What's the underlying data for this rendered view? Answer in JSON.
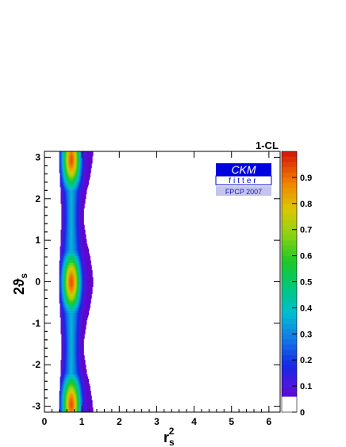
{
  "chart_data": {
    "type": "heatmap",
    "title": "",
    "xlabel": "r",
    "xlabel_sub": "s",
    "xlabel_sup": "2",
    "ylabel": "2ϑ",
    "ylabel_sub": "s",
    "xlim": [
      0,
      6.3
    ],
    "ylim": [
      -3.14159,
      3.14159
    ],
    "x_ticks": [
      0,
      1,
      2,
      3,
      4,
      5,
      6
    ],
    "x_tick_labels": [
      "0",
      "1",
      "2",
      "3",
      "4",
      "5",
      "6"
    ],
    "y_ticks": [
      -3,
      -2,
      -1,
      0,
      1,
      2,
      3
    ],
    "y_tick_labels": [
      "-3",
      "-2",
      "-1",
      "0",
      "1",
      "2",
      "3"
    ],
    "colorbar": {
      "title": "1-CL",
      "range": [
        0,
        1
      ],
      "ticks": [
        0,
        0.1,
        0.2,
        0.3,
        0.4,
        0.5,
        0.6,
        0.7,
        0.8,
        0.9
      ],
      "tick_labels": [
        "0",
        "0.1",
        "0.2",
        "0.3",
        "0.4",
        "0.5",
        "0.6",
        "0.7",
        "0.8",
        "0.9"
      ]
    },
    "region": {
      "description_values": "confidence band in r_s^2 vs 2theta_s",
      "peaks": [
        {
          "x": 0.72,
          "y": 0.0,
          "value": 0.93
        },
        {
          "x": 0.72,
          "y": 2.95,
          "value": 0.93
        },
        {
          "x": 0.72,
          "y": -2.95,
          "value": 0.93
        }
      ],
      "band_edge_x": [
        {
          "y": -3.14,
          "left": 0.45,
          "right": 1.25
        },
        {
          "y": -1.6,
          "left": 0.4,
          "right": 1.05
        },
        {
          "y": 0.0,
          "left": 0.38,
          "right": 1.3
        },
        {
          "y": 1.6,
          "left": 0.4,
          "right": 1.05
        },
        {
          "y": 3.14,
          "left": 0.45,
          "right": 1.25
        }
      ]
    }
  },
  "logo": {
    "word1": "CKM",
    "word2": "fitter",
    "caption": "FPCP 2007"
  },
  "colors": {
    "logo_blue": "#0000e0",
    "caption_bg": "#c4c4ec",
    "caption_text": "#1a1ac8"
  }
}
